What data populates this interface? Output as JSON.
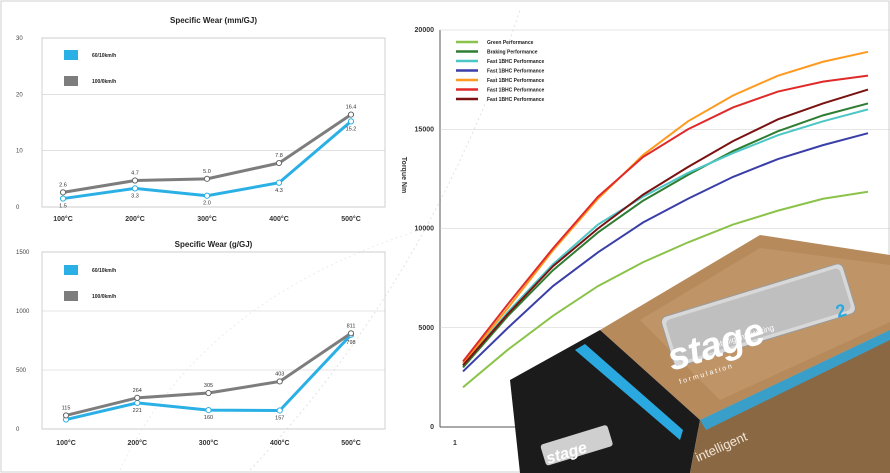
{
  "colors": {
    "series_60_10": "#2bb0e6",
    "series_100_0": "#7d7d7d",
    "grid": "#cccccc",
    "line_green": "#8bc34a",
    "line_darkgreen": "#2e7d32",
    "line_teal": "#4dc6c6",
    "line_blue": "#3a3fa8",
    "line_orange": "#ff9a1f",
    "line_red": "#e02a2a",
    "line_maroon": "#7a1212"
  },
  "chart_data": [
    {
      "type": "line",
      "title": "Specific Wear (mm/GJ)",
      "categories": [
        "100°C",
        "200°C",
        "300°C",
        "400°C",
        "500°C"
      ],
      "series": [
        {
          "name": "60/10km/h",
          "values": [
            1.5,
            3.3,
            2.0,
            4.3,
            15.2
          ],
          "labels": [
            "1.5",
            "3.3",
            "2.0",
            "4.3",
            "15.2"
          ]
        },
        {
          "name": "100/0km/h",
          "values": [
            2.6,
            4.7,
            5.0,
            7.8,
            16.4
          ],
          "labels": [
            "2.6",
            "4.7",
            "5.0",
            "7.8",
            "16.4"
          ]
        }
      ],
      "ylim": [
        0,
        30
      ],
      "yticks": [
        "0",
        "10",
        "20",
        "30"
      ],
      "legend": "top-left",
      "grid": true
    },
    {
      "type": "line",
      "title": "Specific Wear (g/GJ)",
      "categories": [
        "100°C",
        "200°C",
        "300°C",
        "400°C",
        "500°C"
      ],
      "series": [
        {
          "name": "60/10km/h",
          "values": [
            80,
            221,
            160,
            157,
            798
          ],
          "labels": [
            "",
            "221",
            "160",
            "157",
            "798"
          ]
        },
        {
          "name": "100/0km/h",
          "values": [
            115,
            264,
            305,
            403,
            811
          ],
          "labels": [
            "115",
            "264",
            "305",
            "403",
            "811"
          ]
        }
      ],
      "ylim": [
        0,
        1500
      ],
      "yticks": [
        "0",
        "500",
        "1000",
        "1500"
      ],
      "legend": "top-left",
      "grid": true
    },
    {
      "type": "line",
      "title": "",
      "ylabel": "Torque Nm",
      "x": [
        1,
        2,
        3,
        4,
        5,
        6,
        7,
        8,
        9,
        10
      ],
      "ylim": [
        0,
        20000
      ],
      "yticks": [
        "0",
        "5000",
        "10000",
        "15000",
        "20000"
      ],
      "xticks": [
        "1"
      ],
      "series": [
        {
          "name": "Green Performance",
          "color_key": "line_green",
          "values": [
            2000,
            3900,
            5600,
            7100,
            8300,
            9300,
            10200,
            10900,
            11500,
            11850
          ]
        },
        {
          "name": "Braking Performance",
          "color_key": "line_darkgreen",
          "values": [
            3000,
            5600,
            7900,
            9800,
            11400,
            12700,
            13900,
            14900,
            15700,
            16300
          ]
        },
        {
          "name": "Fast 1BHC Performance",
          "color_key": "line_teal",
          "values": [
            3100,
            5800,
            8200,
            10200,
            11600,
            12800,
            13800,
            14700,
            15400,
            16000
          ]
        },
        {
          "name": "Fast 1BHC Performance",
          "color_key": "line_blue",
          "values": [
            2800,
            5000,
            7100,
            8800,
            10300,
            11500,
            12600,
            13500,
            14200,
            14800
          ]
        },
        {
          "name": "Fast 1BHC Performance",
          "color_key": "line_orange",
          "values": [
            3200,
            6000,
            8900,
            11500,
            13700,
            15400,
            16700,
            17700,
            18400,
            18900
          ]
        },
        {
          "name": "Fast 1BHC Performance",
          "color_key": "line_red",
          "values": [
            3300,
            6200,
            9000,
            11600,
            13600,
            15000,
            16100,
            16900,
            17400,
            17700
          ]
        },
        {
          "name": "Fast 1BHC Performance",
          "color_key": "line_maroon",
          "values": [
            3100,
            5700,
            8100,
            10000,
            11700,
            13100,
            14400,
            15500,
            16300,
            17000
          ]
        }
      ],
      "legend": "top-left",
      "grid": true
    }
  ],
  "box": {
    "logo_text": "stage",
    "logo_superscript": "2",
    "tagline": "intelligent braking",
    "sub_tagline": "formulation",
    "side_text": "intelligent"
  }
}
